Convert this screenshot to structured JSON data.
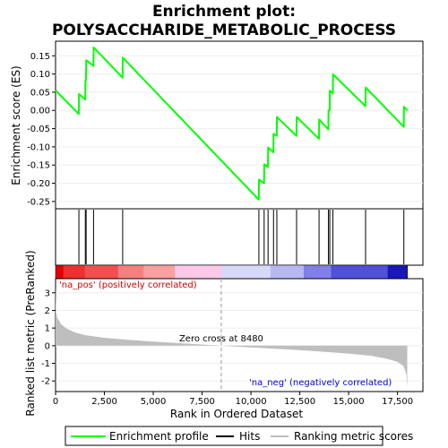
{
  "chart_data": {
    "type": "line",
    "title_line1": "Enrichment plot:",
    "title_line2": "POLYSACCHARIDE_METABOLIC_PROCESS",
    "top_ylabel": "Enrichment score (ES)",
    "bottom_ylabel": "Ranked list metric (PreRanked)",
    "xlabel": "Rank in Ordered Dataset",
    "xlim": [
      0,
      18800
    ],
    "es_ylim": [
      -0.27,
      0.19
    ],
    "metric_ylim": [
      -2.6,
      3.8
    ],
    "x_ticks": [
      0,
      2500,
      5000,
      7500,
      10000,
      12500,
      15000,
      17500
    ],
    "x_tick_labels": [
      "0",
      "2,500",
      "5,000",
      "7,500",
      "10,000",
      "12,500",
      "15,000",
      "17,500"
    ],
    "es_ticks": [
      0.15,
      0.1,
      0.05,
      0.0,
      -0.05,
      -0.1,
      -0.15,
      -0.2,
      -0.25
    ],
    "es_tick_labels": [
      "0.15",
      "0.10",
      "0.05",
      "0.00",
      "-0.05",
      "-0.10",
      "-0.15",
      "-0.20",
      "-0.25"
    ],
    "metric_ticks": [
      3,
      2,
      1,
      0,
      -1,
      -2
    ],
    "metric_tick_labels": [
      "3",
      "2",
      "1",
      "0",
      "-1",
      "-2"
    ],
    "enrichment_profile": [
      [
        0,
        0.055
      ],
      [
        1190,
        -0.01
      ],
      [
        1200,
        0.045
      ],
      [
        1520,
        0.03
      ],
      [
        1530,
        0.082
      ],
      [
        1560,
        0.083
      ],
      [
        1570,
        0.138
      ],
      [
        1940,
        0.122
      ],
      [
        1950,
        0.173
      ],
      [
        3430,
        0.09
      ],
      [
        3440,
        0.145
      ],
      [
        10400,
        -0.245
      ],
      [
        10410,
        -0.19
      ],
      [
        10670,
        -0.2
      ],
      [
        10680,
        -0.148
      ],
      [
        10870,
        -0.155
      ],
      [
        10880,
        -0.102
      ],
      [
        11150,
        -0.115
      ],
      [
        11160,
        -0.064
      ],
      [
        11320,
        -0.07
      ],
      [
        11330,
        -0.018
      ],
      [
        12330,
        -0.07
      ],
      [
        12340,
        -0.018
      ],
      [
        13480,
        -0.078
      ],
      [
        13490,
        -0.025
      ],
      [
        13960,
        -0.052
      ],
      [
        13970,
        0.0
      ],
      [
        14030,
        0.001
      ],
      [
        14040,
        0.054
      ],
      [
        14190,
        0.047
      ],
      [
        14200,
        0.099
      ],
      [
        15860,
        0.012
      ],
      [
        15870,
        0.063
      ],
      [
        17820,
        -0.045
      ],
      [
        17830,
        0.01
      ],
      [
        18000,
        0.0
      ]
    ],
    "hits": [
      1195,
      1525,
      1565,
      1945,
      3435,
      10405,
      10675,
      10875,
      11155,
      11325,
      12335,
      13485,
      13965,
      14035,
      14195,
      15865,
      17825
    ],
    "metric_curve": [
      [
        0,
        3.4
      ],
      [
        30,
        1.9
      ],
      [
        100,
        1.55
      ],
      [
        300,
        1.2
      ],
      [
        600,
        0.95
      ],
      [
        1000,
        0.75
      ],
      [
        1500,
        0.6
      ],
      [
        2500,
        0.45
      ],
      [
        3500,
        0.35
      ],
      [
        5000,
        0.23
      ],
      [
        7000,
        0.1
      ],
      [
        8480,
        0.0
      ],
      [
        10000,
        -0.1
      ],
      [
        12000,
        -0.22
      ],
      [
        13500,
        -0.33
      ],
      [
        15000,
        -0.45
      ],
      [
        16200,
        -0.58
      ],
      [
        17000,
        -0.75
      ],
      [
        17500,
        -0.92
      ],
      [
        17800,
        -1.15
      ],
      [
        17950,
        -1.6
      ],
      [
        18000,
        -2.35
      ]
    ],
    "zero_cross_rank": 8480,
    "zero_cross_label": "Zero cross at 8480",
    "pos_label": "'na_pos' (positively correlated)",
    "neg_label": "'na_neg' (negatively correlated)",
    "heat_colors": [
      [
        0,
        "#e00000"
      ],
      [
        400,
        "#ee3030"
      ],
      [
        1500,
        "#f05050"
      ],
      [
        3200,
        "#f58080"
      ],
      [
        4500,
        "#f8a0a0"
      ],
      [
        6100,
        "#fbc8e8"
      ],
      [
        8500,
        "#d8d8f8"
      ],
      [
        11000,
        "#b8b8f0"
      ],
      [
        12700,
        "#8080e8"
      ],
      [
        14100,
        "#5050d8"
      ],
      [
        17000,
        "#1818b8"
      ],
      [
        18000,
        "#1818b8"
      ]
    ],
    "legend": {
      "profile": "Enrichment profile",
      "hits": "Hits",
      "metric": "Ranking metric scores"
    },
    "colors": {
      "profile": "#00ff00",
      "hits": "#000000",
      "metric_fill": "#bebebe",
      "pos_text": "#cc0000",
      "neg_text": "#0000cc"
    }
  }
}
